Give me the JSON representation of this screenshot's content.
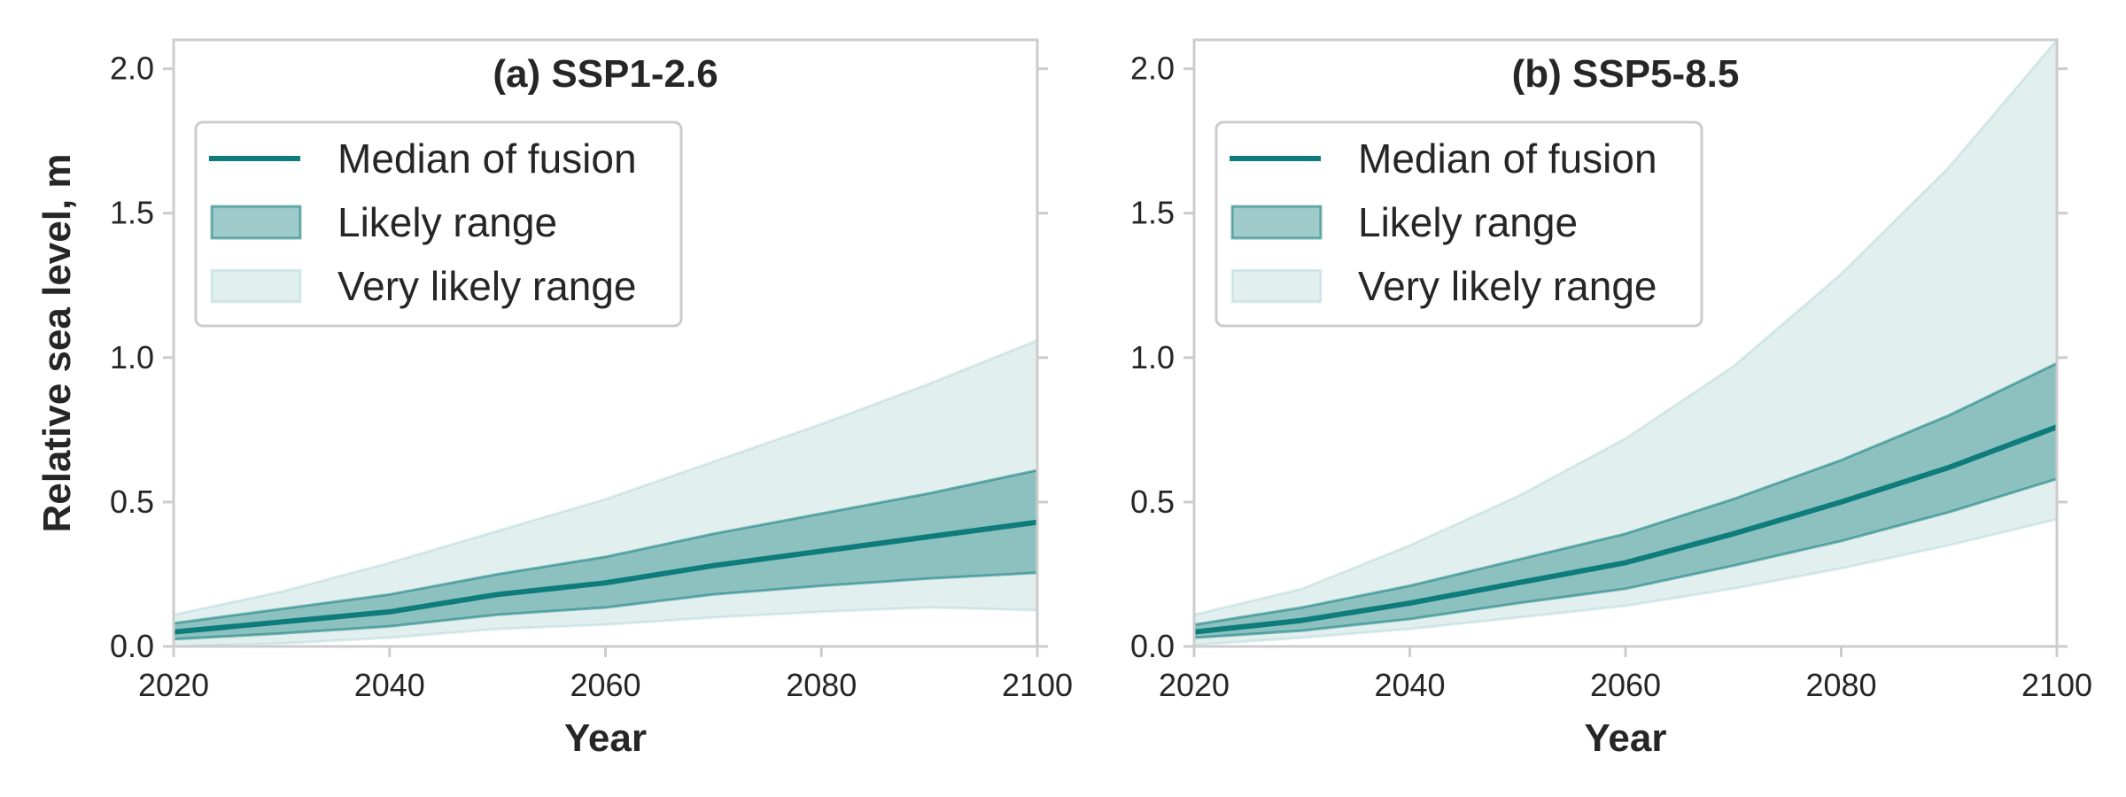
{
  "chart_data": [
    {
      "type": "line",
      "title": "(a) SSP1-2.6",
      "xlabel": "Year",
      "ylabel": "Relative sea level, m",
      "x": [
        2020,
        2030,
        2040,
        2050,
        2060,
        2070,
        2080,
        2090,
        2100
      ],
      "xlim": [
        2020,
        2100
      ],
      "ylim": [
        0,
        2.1
      ],
      "xticks": [
        "2020",
        "2040",
        "2060",
        "2080",
        "2100"
      ],
      "yticks": [
        "0.0",
        "0.5",
        "1.0",
        "1.5",
        "2.0"
      ],
      "grid": false,
      "legend_position": "top-left",
      "series": [
        {
          "name": "Median of fusion",
          "kind": "line",
          "color": "#0e7c7b",
          "values": [
            0.05,
            0.085,
            0.12,
            0.18,
            0.22,
            0.28,
            0.33,
            0.38,
            0.43
          ]
        },
        {
          "name": "Likely range",
          "kind": "band",
          "color": "#0e7c7b",
          "lower": [
            0.025,
            0.045,
            0.07,
            0.11,
            0.135,
            0.18,
            0.21,
            0.235,
            0.255
          ],
          "upper": [
            0.08,
            0.13,
            0.18,
            0.25,
            0.31,
            0.39,
            0.46,
            0.53,
            0.61
          ]
        },
        {
          "name": "Very likely range",
          "kind": "band",
          "color": "#0e7c7b",
          "lower": [
            0.0,
            0.01,
            0.03,
            0.06,
            0.075,
            0.1,
            0.12,
            0.135,
            0.125
          ],
          "upper": [
            0.11,
            0.19,
            0.29,
            0.4,
            0.51,
            0.64,
            0.77,
            0.91,
            1.06
          ]
        }
      ]
    },
    {
      "type": "line",
      "title": "(b) SSP5-8.5",
      "xlabel": "Year",
      "ylabel": "",
      "x": [
        2020,
        2030,
        2040,
        2050,
        2060,
        2070,
        2080,
        2090,
        2100
      ],
      "xlim": [
        2020,
        2100
      ],
      "ylim": [
        0,
        2.1
      ],
      "xticks": [
        "2020",
        "2040",
        "2060",
        "2080",
        "2100"
      ],
      "yticks": [
        "0.0",
        "0.5",
        "1.0",
        "1.5",
        "2.0"
      ],
      "grid": false,
      "legend_position": "top-left",
      "series": [
        {
          "name": "Median of fusion",
          "kind": "line",
          "color": "#0e7c7b",
          "values": [
            0.05,
            0.09,
            0.15,
            0.22,
            0.29,
            0.39,
            0.5,
            0.62,
            0.76
          ]
        },
        {
          "name": "Likely range",
          "kind": "band",
          "color": "#0e7c7b",
          "lower": [
            0.03,
            0.055,
            0.095,
            0.15,
            0.2,
            0.28,
            0.365,
            0.465,
            0.58
          ],
          "upper": [
            0.075,
            0.135,
            0.21,
            0.3,
            0.39,
            0.51,
            0.645,
            0.8,
            0.98
          ]
        },
        {
          "name": "Very likely range",
          "kind": "band",
          "color": "#0e7c7b",
          "lower": [
            0.005,
            0.03,
            0.06,
            0.1,
            0.14,
            0.2,
            0.27,
            0.35,
            0.44
          ],
          "upper": [
            0.11,
            0.2,
            0.35,
            0.52,
            0.72,
            0.97,
            1.29,
            1.66,
            2.1
          ]
        }
      ]
    }
  ]
}
